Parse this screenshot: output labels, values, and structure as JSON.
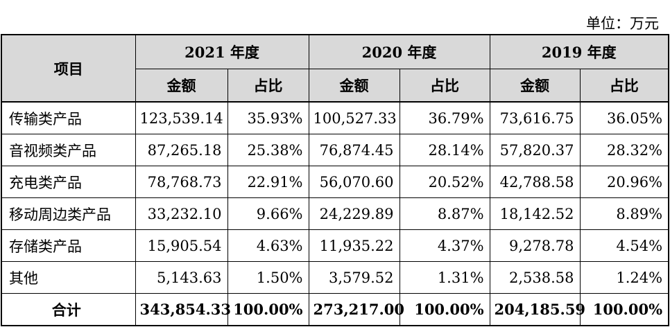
{
  "unit_label": "单位：万元",
  "header": {
    "item": "项目",
    "years": [
      "2021 年度",
      "2020 年度",
      "2019 年度"
    ],
    "amount": "金额",
    "ratio": "占比"
  },
  "rows": [
    {
      "label": "传输类产品",
      "cells": [
        "123,539.14",
        "35.93%",
        "100,527.33",
        "36.79%",
        "73,616.75",
        "36.05%"
      ]
    },
    {
      "label": "音视频类产品",
      "cells": [
        "87,265.18",
        "25.38%",
        "76,874.45",
        "28.14%",
        "57,820.37",
        "28.32%"
      ]
    },
    {
      "label": "充电类产品",
      "cells": [
        "78,768.73",
        "22.91%",
        "56,070.60",
        "20.52%",
        "42,788.58",
        "20.96%"
      ]
    },
    {
      "label": "移动周边类产品",
      "cells": [
        "33,232.10",
        "9.66%",
        "24,229.89",
        "8.87%",
        "18,142.52",
        "8.89%"
      ]
    },
    {
      "label": "存储类产品",
      "cells": [
        "15,905.54",
        "4.63%",
        "11,935.22",
        "4.37%",
        "9,278.78",
        "4.54%"
      ]
    },
    {
      "label": "其他",
      "cells": [
        "5,143.63",
        "1.50%",
        "3,579.52",
        "1.31%",
        "2,538.58",
        "1.24%"
      ]
    }
  ],
  "total": {
    "label": "合计",
    "cells": [
      "343,854.33",
      "100.00%",
      "273,217.00",
      "100.00%",
      "204,185.59",
      "100.00%"
    ]
  },
  "colors": {
    "header_bg": "#d9d9d9",
    "border": "#000000"
  }
}
